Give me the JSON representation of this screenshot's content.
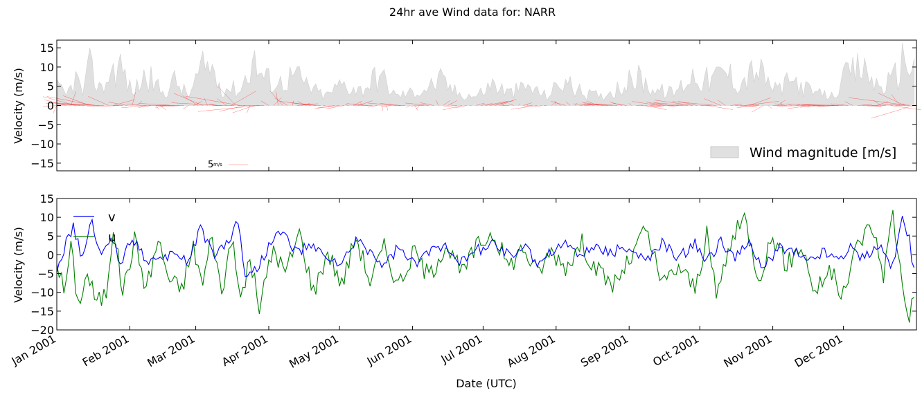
{
  "title": "24hr ave Wind data for:   NARR",
  "chart_data": [
    {
      "type": "area",
      "ylabel": "Velocity (m/s)",
      "ylim": [
        -17,
        17
      ],
      "yticks": [
        "15",
        "10",
        "5",
        "0",
        "−5",
        "−10",
        "−15"
      ],
      "ytick_values": [
        15,
        10,
        5,
        0,
        -5,
        -10,
        -15
      ],
      "x_start": "2001-01-01",
      "x_end": "2002-01-01",
      "grid": false,
      "legend_position": "lower-right",
      "series": [
        {
          "name": "Wind magnitude [m/s]",
          "color": "#d3d3d3"
        },
        {
          "name": "",
          "color": "#ff0000"
        }
      ],
      "quiver_key": {
        "label_value": "5",
        "label_unit": "m/s"
      },
      "magnitude_approx": [
        {
          "x": "2001-01-01",
          "y": 6
        },
        {
          "x": "2001-01-05",
          "y": 3
        },
        {
          "x": "2001-01-09",
          "y": 9
        },
        {
          "x": "2001-01-12",
          "y": 4
        },
        {
          "x": "2001-01-15",
          "y": 12
        },
        {
          "x": "2001-01-20",
          "y": 5
        },
        {
          "x": "2001-01-24",
          "y": 11
        },
        {
          "x": "2001-01-28",
          "y": 13
        },
        {
          "x": "2001-02-02",
          "y": 4
        },
        {
          "x": "2001-02-08",
          "y": 10
        },
        {
          "x": "2001-02-15",
          "y": 4
        },
        {
          "x": "2001-02-20",
          "y": 8
        },
        {
          "x": "2001-02-26",
          "y": 3
        },
        {
          "x": "2001-03-03",
          "y": 11
        },
        {
          "x": "2001-03-07",
          "y": 13
        },
        {
          "x": "2001-03-12",
          "y": 6
        },
        {
          "x": "2001-03-20",
          "y": 5
        },
        {
          "x": "2001-03-25",
          "y": 15
        },
        {
          "x": "2001-03-30",
          "y": 9
        },
        {
          "x": "2001-04-05",
          "y": 7
        },
        {
          "x": "2001-04-12",
          "y": 10
        },
        {
          "x": "2001-04-18",
          "y": 6
        },
        {
          "x": "2001-04-25",
          "y": 3
        },
        {
          "x": "2001-05-02",
          "y": 7
        },
        {
          "x": "2001-05-10",
          "y": 5
        },
        {
          "x": "2001-05-18",
          "y": 10
        },
        {
          "x": "2001-05-25",
          "y": 3
        },
        {
          "x": "2001-06-05",
          "y": 5
        },
        {
          "x": "2001-06-13",
          "y": 8
        },
        {
          "x": "2001-06-20",
          "y": 4
        },
        {
          "x": "2001-06-28",
          "y": 3
        },
        {
          "x": "2001-07-05",
          "y": 7
        },
        {
          "x": "2001-07-12",
          "y": 4
        },
        {
          "x": "2001-07-20",
          "y": 6
        },
        {
          "x": "2001-07-28",
          "y": 3
        },
        {
          "x": "2001-08-04",
          "y": 8
        },
        {
          "x": "2001-08-12",
          "y": 4
        },
        {
          "x": "2001-08-20",
          "y": 3
        },
        {
          "x": "2001-08-28",
          "y": 6
        },
        {
          "x": "2001-09-05",
          "y": 9
        },
        {
          "x": "2001-09-12",
          "y": 5
        },
        {
          "x": "2001-09-20",
          "y": 4
        },
        {
          "x": "2001-09-28",
          "y": 10
        },
        {
          "x": "2001-10-05",
          "y": 8
        },
        {
          "x": "2001-10-12",
          "y": 11
        },
        {
          "x": "2001-10-18",
          "y": 7
        },
        {
          "x": "2001-10-25",
          "y": 12
        },
        {
          "x": "2001-11-02",
          "y": 5
        },
        {
          "x": "2001-11-10",
          "y": 8
        },
        {
          "x": "2001-11-18",
          "y": 4
        },
        {
          "x": "2001-11-26",
          "y": 3
        },
        {
          "x": "2001-12-03",
          "y": 10
        },
        {
          "x": "2001-12-09",
          "y": 12
        },
        {
          "x": "2001-12-16",
          "y": 6
        },
        {
          "x": "2001-12-22",
          "y": 8
        },
        {
          "x": "2001-12-27",
          "y": 16
        },
        {
          "x": "2001-12-31",
          "y": 12
        }
      ]
    },
    {
      "type": "line",
      "xlabel": "Date (UTC)",
      "ylabel": "Velocity (m/s)",
      "ylim": [
        -20,
        15
      ],
      "yticks": [
        "15",
        "10",
        "5",
        "0",
        "−5",
        "−10",
        "−15",
        "−20"
      ],
      "ytick_values": [
        15,
        10,
        5,
        0,
        -5,
        -10,
        -15,
        -20
      ],
      "x_start": "2001-01-01",
      "x_end": "2002-01-01",
      "x_ticks": [
        "Jan 2001",
        "Feb 2001",
        "Mar 2001",
        "Apr 2001",
        "May 2001",
        "Jun 2001",
        "Jul 2001",
        "Aug 2001",
        "Sep 2001",
        "Oct 2001",
        "Nov 2001",
        "Dec 2001"
      ],
      "x_tick_dates": [
        "2001-01-01",
        "2001-02-01",
        "2001-03-01",
        "2001-04-01",
        "2001-05-01",
        "2001-06-01",
        "2001-07-01",
        "2001-08-01",
        "2001-09-01",
        "2001-10-01",
        "2001-11-01",
        "2001-12-01"
      ],
      "grid": false,
      "legend_position": "upper-left",
      "series": [
        {
          "name": "v",
          "color": "#0000ff",
          "values_approx": [
            {
              "x": "2001-01-01",
              "y": -4
            },
            {
              "x": "2001-01-05",
              "y": 3
            },
            {
              "x": "2001-01-08",
              "y": 7
            },
            {
              "x": "2001-01-12",
              "y": -1
            },
            {
              "x": "2001-01-16",
              "y": 9
            },
            {
              "x": "2001-01-20",
              "y": -1
            },
            {
              "x": "2001-01-24",
              "y": 5
            },
            {
              "x": "2001-01-28",
              "y": -2
            },
            {
              "x": "2001-02-02",
              "y": 5
            },
            {
              "x": "2001-02-08",
              "y": -1
            },
            {
              "x": "2001-02-15",
              "y": -2
            },
            {
              "x": "2001-02-20",
              "y": 1
            },
            {
              "x": "2001-02-26",
              "y": -2
            },
            {
              "x": "2001-03-03",
              "y": 8
            },
            {
              "x": "2001-03-08",
              "y": 0
            },
            {
              "x": "2001-03-14",
              "y": 3
            },
            {
              "x": "2001-03-19",
              "y": 9
            },
            {
              "x": "2001-03-22",
              "y": -5
            },
            {
              "x": "2001-03-27",
              "y": -4
            },
            {
              "x": "2001-04-02",
              "y": 4
            },
            {
              "x": "2001-04-07",
              "y": 6
            },
            {
              "x": "2001-04-12",
              "y": 1
            },
            {
              "x": "2001-04-18",
              "y": 2
            },
            {
              "x": "2001-04-25",
              "y": 0
            },
            {
              "x": "2001-05-02",
              "y": -3
            },
            {
              "x": "2001-05-08",
              "y": 4
            },
            {
              "x": "2001-05-14",
              "y": 1
            },
            {
              "x": "2001-05-20",
              "y": -3
            },
            {
              "x": "2001-05-26",
              "y": 2
            },
            {
              "x": "2001-06-02",
              "y": -3
            },
            {
              "x": "2001-06-08",
              "y": 1
            },
            {
              "x": "2001-06-15",
              "y": 3
            },
            {
              "x": "2001-06-22",
              "y": -2
            },
            {
              "x": "2001-06-28",
              "y": 1
            },
            {
              "x": "2001-07-05",
              "y": 3
            },
            {
              "x": "2001-07-12",
              "y": 0
            },
            {
              "x": "2001-07-18",
              "y": 2
            },
            {
              "x": "2001-07-24",
              "y": -2
            },
            {
              "x": "2001-07-30",
              "y": 1
            },
            {
              "x": "2001-08-05",
              "y": 3
            },
            {
              "x": "2001-08-12",
              "y": 0
            },
            {
              "x": "2001-08-18",
              "y": 2
            },
            {
              "x": "2001-08-25",
              "y": 1
            },
            {
              "x": "2001-09-01",
              "y": 2
            },
            {
              "x": "2001-09-08",
              "y": -2
            },
            {
              "x": "2001-09-15",
              "y": 3
            },
            {
              "x": "2001-09-22",
              "y": -1
            },
            {
              "x": "2001-09-29",
              "y": 3
            },
            {
              "x": "2001-10-04",
              "y": -2
            },
            {
              "x": "2001-10-10",
              "y": 4
            },
            {
              "x": "2001-10-16",
              "y": -1
            },
            {
              "x": "2001-10-22",
              "y": 3
            },
            {
              "x": "2001-10-28",
              "y": -4
            },
            {
              "x": "2001-11-03",
              "y": 2
            },
            {
              "x": "2001-11-10",
              "y": 1
            },
            {
              "x": "2001-11-16",
              "y": -2
            },
            {
              "x": "2001-11-22",
              "y": 1
            },
            {
              "x": "2001-11-28",
              "y": -1
            },
            {
              "x": "2001-12-04",
              "y": 2
            },
            {
              "x": "2001-12-10",
              "y": -1
            },
            {
              "x": "2001-12-16",
              "y": 3
            },
            {
              "x": "2001-12-22",
              "y": -3
            },
            {
              "x": "2001-12-26",
              "y": 10
            },
            {
              "x": "2001-12-29",
              "y": 4
            },
            {
              "x": "2001-12-31",
              "y": -5
            }
          ]
        },
        {
          "name": "u",
          "color": "#008000",
          "values_approx": [
            {
              "x": "2001-01-01",
              "y": -1
            },
            {
              "x": "2001-01-04",
              "y": -10
            },
            {
              "x": "2001-01-07",
              "y": 2
            },
            {
              "x": "2001-01-10",
              "y": -13
            },
            {
              "x": "2001-01-14",
              "y": -5
            },
            {
              "x": "2001-01-18",
              "y": -13
            },
            {
              "x": "2001-01-22",
              "y": -10
            },
            {
              "x": "2001-01-25",
              "y": 8
            },
            {
              "x": "2001-01-29",
              "y": -10
            },
            {
              "x": "2001-02-03",
              "y": 4
            },
            {
              "x": "2001-02-08",
              "y": -9
            },
            {
              "x": "2001-02-13",
              "y": 4
            },
            {
              "x": "2001-02-18",
              "y": -7
            },
            {
              "x": "2001-02-23",
              "y": -9
            },
            {
              "x": "2001-02-28",
              "y": 2
            },
            {
              "x": "2001-03-04",
              "y": -8
            },
            {
              "x": "2001-03-08",
              "y": 6
            },
            {
              "x": "2001-03-12",
              "y": -11
            },
            {
              "x": "2001-03-16",
              "y": 5
            },
            {
              "x": "2001-03-20",
              "y": -12
            },
            {
              "x": "2001-03-24",
              "y": -1
            },
            {
              "x": "2001-03-28",
              "y": -14
            },
            {
              "x": "2001-04-03",
              "y": 2
            },
            {
              "x": "2001-04-08",
              "y": -5
            },
            {
              "x": "2001-04-14",
              "y": 6
            },
            {
              "x": "2001-04-20",
              "y": -10
            },
            {
              "x": "2001-04-26",
              "y": 1
            },
            {
              "x": "2001-05-02",
              "y": -8
            },
            {
              "x": "2001-05-08",
              "y": 5
            },
            {
              "x": "2001-05-14",
              "y": -7
            },
            {
              "x": "2001-05-20",
              "y": 2
            },
            {
              "x": "2001-05-26",
              "y": -8
            },
            {
              "x": "2001-06-02",
              "y": 1
            },
            {
              "x": "2001-06-08",
              "y": -6
            },
            {
              "x": "2001-06-15",
              "y": 3
            },
            {
              "x": "2001-06-22",
              "y": -5
            },
            {
              "x": "2001-06-28",
              "y": 2
            },
            {
              "x": "2001-07-05",
              "y": 6
            },
            {
              "x": "2001-07-12",
              "y": -3
            },
            {
              "x": "2001-07-18",
              "y": 2
            },
            {
              "x": "2001-07-24",
              "y": -5
            },
            {
              "x": "2001-07-30",
              "y": 1
            },
            {
              "x": "2001-08-05",
              "y": -3
            },
            {
              "x": "2001-08-12",
              "y": 3
            },
            {
              "x": "2001-08-18",
              "y": -4
            },
            {
              "x": "2001-08-25",
              "y": -8
            },
            {
              "x": "2001-09-01",
              "y": -2
            },
            {
              "x": "2001-09-08",
              "y": 7
            },
            {
              "x": "2001-09-15",
              "y": -8
            },
            {
              "x": "2001-09-22",
              "y": -3
            },
            {
              "x": "2001-09-29",
              "y": -9
            },
            {
              "x": "2001-10-04",
              "y": 5
            },
            {
              "x": "2001-10-08",
              "y": -11
            },
            {
              "x": "2001-10-14",
              "y": 3
            },
            {
              "x": "2001-10-20",
              "y": 10
            },
            {
              "x": "2001-10-26",
              "y": -6
            },
            {
              "x": "2001-11-01",
              "y": 5
            },
            {
              "x": "2001-11-07",
              "y": -3
            },
            {
              "x": "2001-11-13",
              "y": 3
            },
            {
              "x": "2001-11-19",
              "y": -10
            },
            {
              "x": "2001-11-25",
              "y": -4
            },
            {
              "x": "2001-12-01",
              "y": -11
            },
            {
              "x": "2001-12-07",
              "y": 3
            },
            {
              "x": "2001-12-13",
              "y": 8
            },
            {
              "x": "2001-12-18",
              "y": -5
            },
            {
              "x": "2001-12-22",
              "y": 11
            },
            {
              "x": "2001-12-26",
              "y": -8
            },
            {
              "x": "2001-12-29",
              "y": -16
            },
            {
              "x": "2001-12-31",
              "y": -11
            }
          ]
        }
      ]
    }
  ]
}
